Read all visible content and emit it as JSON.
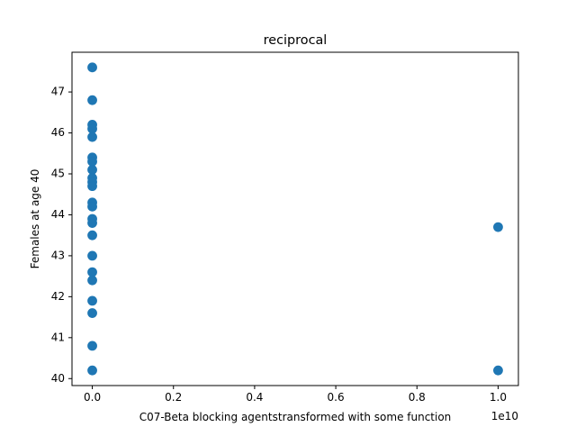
{
  "chart_data": {
    "type": "scatter",
    "title": "reciprocal",
    "xlabel": "C07-Beta blocking agentstransformed with some function",
    "ylabel": "Females at age 40",
    "x_offset_text": "1e10",
    "x_scale_multiplier": 10000000000,
    "xlim": [
      -500000000,
      10500000000
    ],
    "ylim": [
      39.83,
      47.97
    ],
    "x_ticks": [
      0,
      2000000000,
      4000000000,
      6000000000,
      8000000000,
      10000000000
    ],
    "x_tick_labels": [
      "0.0",
      "0.2",
      "0.4",
      "0.6",
      "0.8",
      "1.0"
    ],
    "y_ticks": [
      40,
      41,
      42,
      43,
      44,
      45,
      46,
      47
    ],
    "y_tick_labels": [
      "40",
      "41",
      "42",
      "43",
      "44",
      "45",
      "46",
      "47"
    ],
    "grid": false,
    "marker_color": "#1f77b4",
    "points": [
      {
        "x": 0,
        "y": 47.6
      },
      {
        "x": 0,
        "y": 46.8
      },
      {
        "x": 0,
        "y": 46.2
      },
      {
        "x": 0,
        "y": 46.1
      },
      {
        "x": 0,
        "y": 45.9
      },
      {
        "x": 0,
        "y": 45.4
      },
      {
        "x": 0,
        "y": 45.3
      },
      {
        "x": 0,
        "y": 45.1
      },
      {
        "x": 0,
        "y": 44.9
      },
      {
        "x": 0,
        "y": 44.8
      },
      {
        "x": 0,
        "y": 44.7
      },
      {
        "x": 0,
        "y": 44.3
      },
      {
        "x": 0,
        "y": 44.2
      },
      {
        "x": 0,
        "y": 43.9
      },
      {
        "x": 0,
        "y": 43.8
      },
      {
        "x": 0,
        "y": 43.5
      },
      {
        "x": 0,
        "y": 43.0
      },
      {
        "x": 0,
        "y": 42.6
      },
      {
        "x": 0,
        "y": 42.4
      },
      {
        "x": 0,
        "y": 41.9
      },
      {
        "x": 0,
        "y": 41.6
      },
      {
        "x": 0,
        "y": 40.8
      },
      {
        "x": 0,
        "y": 40.2
      },
      {
        "x": 10000000000,
        "y": 43.7
      },
      {
        "x": 10000000000,
        "y": 40.2
      }
    ]
  }
}
